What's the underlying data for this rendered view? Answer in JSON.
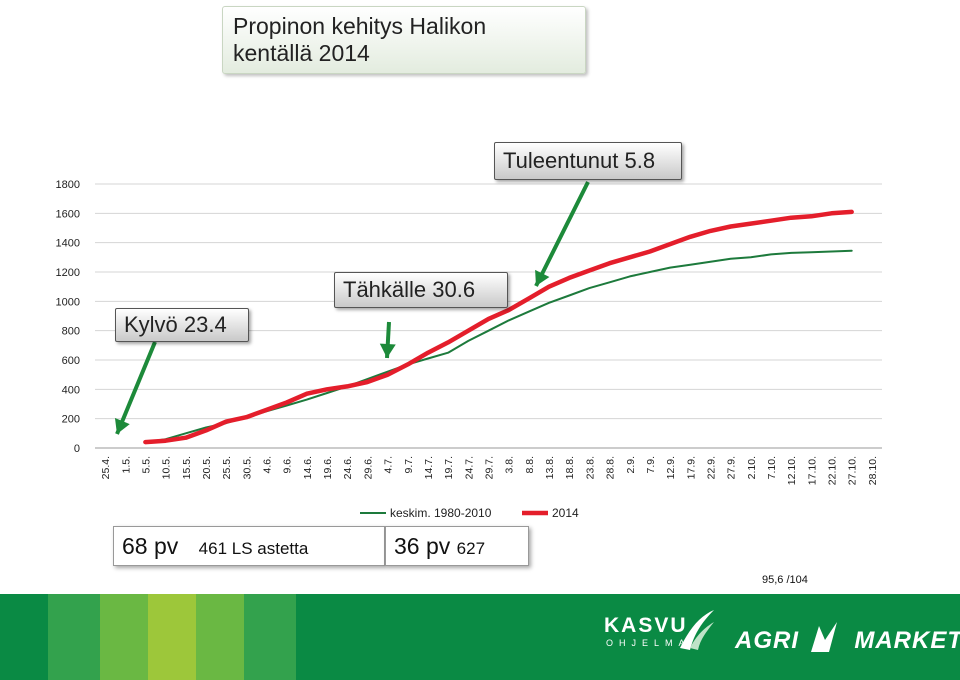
{
  "title": {
    "line1": "Propinon kehitys Halikon",
    "line2": "kentällä 2014"
  },
  "callouts": {
    "kylvo": "Kylvö 23.4",
    "tahkalle": "Tähkälle  30.6",
    "tuleentunut": "Tuleentunut 5.8"
  },
  "info_left": {
    "days": "68 pv",
    "detail": "461  LS astetta"
  },
  "info_right": {
    "days": "36 pv",
    "detail": "627"
  },
  "footnote": "95,6 /104",
  "logos": {
    "kasvu": "KASVU",
    "kasvu_sub": "OHJELMA",
    "agri": "AGRI",
    "market": "MARKET"
  },
  "colors": {
    "series_avg": "#1d7a3c",
    "series_2014": "#e41e2b",
    "arrow": "#1d8a3a",
    "footer": "#0a8a44"
  },
  "chart_data": {
    "type": "line",
    "title": "",
    "xlabel": "",
    "ylabel": "",
    "ylim": [
      0,
      1800
    ],
    "yticks": [
      0,
      200,
      400,
      600,
      800,
      1000,
      1200,
      1400,
      1600,
      1800
    ],
    "grid": true,
    "legend_position": "bottom",
    "categories": [
      "25.4.",
      "1.5.",
      "5.5.",
      "10.5.",
      "15.5.",
      "20.5.",
      "25.5.",
      "30.5.",
      "4.6.",
      "9.6.",
      "14.6.",
      "19.6.",
      "24.6.",
      "29.6.",
      "4.7.",
      "9.7.",
      "14.7.",
      "19.7.",
      "24.7.",
      "29.7.",
      "3.8.",
      "8.8.",
      "13.8.",
      "18.8.",
      "23.8.",
      "28.8.",
      "2.9.",
      "7.9.",
      "12.9.",
      "17.9.",
      "22.9.",
      "27.9.",
      "2.10.",
      "7.10.",
      "12.10.",
      "17.10.",
      "22.10.",
      "27.10.",
      "28.10."
    ],
    "series": [
      {
        "name": "keskim. 1980-2010",
        "values": [
          null,
          null,
          40,
          60,
          100,
          140,
          170,
          210,
          250,
          290,
          330,
          375,
          420,
          470,
          520,
          570,
          610,
          650,
          730,
          800,
          870,
          930,
          990,
          1040,
          1090,
          1130,
          1170,
          1200,
          1230,
          1250,
          1270,
          1290,
          1300,
          1320,
          1330,
          1335,
          1340,
          1345,
          null
        ]
      },
      {
        "name": "2014",
        "values": [
          null,
          null,
          40,
          50,
          70,
          120,
          180,
          210,
          260,
          310,
          370,
          400,
          420,
          450,
          500,
          570,
          650,
          720,
          800,
          880,
          940,
          1020,
          1100,
          1160,
          1210,
          1260,
          1300,
          1340,
          1390,
          1440,
          1480,
          1510,
          1530,
          1550,
          1570,
          1580,
          1600,
          1610,
          null
        ]
      }
    ]
  }
}
